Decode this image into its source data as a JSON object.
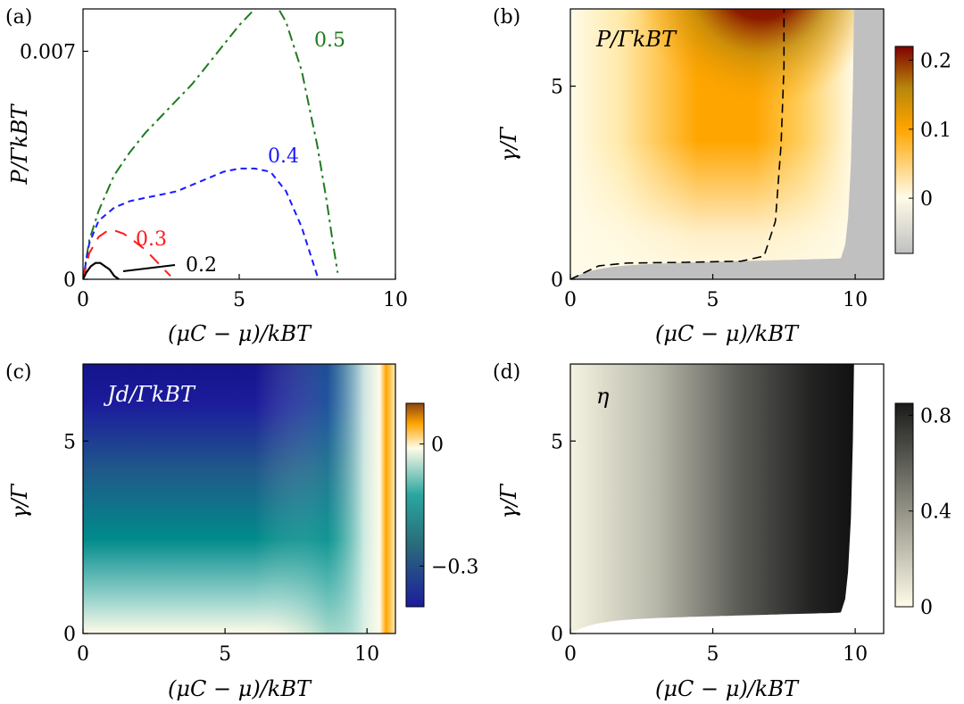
{
  "chart_data": [
    {
      "panel": "(a)",
      "type": "line",
      "title": "",
      "xlabel": "(μC − μ)/kBT",
      "ylabel": "P/ΓkBT",
      "xlim": [
        0,
        10
      ],
      "ylim": [
        0,
        0.0083
      ],
      "xticks": [
        "0",
        "5",
        "10"
      ],
      "yticks": [
        "0",
        "0.007"
      ],
      "series": [
        {
          "name": "0.5",
          "color": "#1f7a1f",
          "dash": "dashdot",
          "x": [
            0,
            0.2,
            0.5,
            1.0,
            1.5,
            2.0,
            2.5,
            3.0,
            3.5,
            4.0,
            4.5,
            5.0,
            5.5,
            6.0,
            6.2,
            6.5,
            7.0,
            7.5,
            7.8,
            8.0,
            8.15
          ],
          "y": [
            0,
            0.0012,
            0.0021,
            0.0032,
            0.0039,
            0.0045,
            0.005,
            0.0055,
            0.006,
            0.0066,
            0.0072,
            0.0078,
            0.0083,
            0.0085,
            0.0084,
            0.0079,
            0.0064,
            0.0041,
            0.0024,
            0.0011,
            0.0002
          ]
        },
        {
          "name": "0.4",
          "color": "#1a1aff",
          "dash": "dash",
          "x": [
            0,
            0.2,
            0.5,
            1.0,
            1.5,
            2.0,
            2.5,
            3.0,
            3.5,
            4.0,
            4.5,
            5.0,
            5.5,
            6.0,
            6.5,
            7.0,
            7.3,
            7.5
          ],
          "y": [
            0,
            0.0011,
            0.0018,
            0.0022,
            0.0024,
            0.0025,
            0.0026,
            0.0027,
            0.0029,
            0.0031,
            0.0033,
            0.0034,
            0.0034,
            0.0033,
            0.0027,
            0.0016,
            0.0007,
            0.0001
          ]
        },
        {
          "name": "0.3",
          "color": "#ff1a1a",
          "dash": "longdash",
          "x": [
            0,
            0.2,
            0.5,
            0.8,
            1.0,
            1.3,
            1.6,
            2.0,
            2.4,
            2.8
          ],
          "y": [
            0,
            0.0008,
            0.0013,
            0.0015,
            0.0015,
            0.0014,
            0.0012,
            0.0009,
            0.0005,
            0.0001
          ]
        },
        {
          "name": "0.2",
          "color": "#000000",
          "dash": "solid",
          "x": [
            0,
            0.1,
            0.25,
            0.4,
            0.55,
            0.7,
            0.85,
            1.0,
            1.15
          ],
          "y": [
            0,
            0.0002,
            0.0004,
            0.0005,
            0.0005,
            0.0004,
            0.0003,
            0.0001,
            0
          ]
        }
      ]
    },
    {
      "panel": "(b)",
      "type": "heatmap",
      "annotation": "P/ΓkBT",
      "xlabel": "(μC − μ)/kBT",
      "ylabel": "γ/Γ",
      "xlim": [
        0,
        11
      ],
      "ylim": [
        0,
        7
      ],
      "xticks": [
        "0",
        "5",
        "10"
      ],
      "yticks": [
        "0",
        "5"
      ],
      "colorbar": {
        "ticks": [
          "0.2",
          "0.1",
          "0"
        ],
        "range": [
          -0.08,
          0.22
        ],
        "colors": [
          "#c0c0c0",
          "#fffbe8",
          "#ffa500",
          "#800000"
        ]
      },
      "masked_color": "#c0c0c0",
      "dashed_line": {
        "x": [
          0,
          1,
          2,
          4,
          6,
          6.8,
          7.2,
          7.4,
          7.5,
          7.5
        ],
        "y": [
          0,
          0.35,
          0.42,
          0.44,
          0.47,
          0.6,
          1.5,
          3.5,
          5.5,
          7
        ]
      }
    },
    {
      "panel": "(c)",
      "type": "heatmap",
      "annotation": "Jd/ΓkBT",
      "xlabel": "(μC − μ)/kBT",
      "ylabel": "γ/Γ",
      "xlim": [
        0,
        11
      ],
      "ylim": [
        0,
        7
      ],
      "xticks": [
        "0",
        "5",
        "10"
      ],
      "yticks": [
        "0",
        "5"
      ],
      "colorbar": {
        "ticks": [
          "0",
          "−0.3"
        ],
        "range": [
          -0.4,
          0.1
        ],
        "colors": [
          "#1c1c9c",
          "#008b8b",
          "#fffbe8",
          "#ffa500",
          "#8b4513"
        ]
      }
    },
    {
      "panel": "(d)",
      "type": "heatmap",
      "annotation": "η",
      "xlabel": "(μC − μ)/kBT",
      "ylabel": "γ/Γ",
      "xlim": [
        0,
        11
      ],
      "ylim": [
        0,
        7
      ],
      "xticks": [
        "0",
        "5",
        "10"
      ],
      "yticks": [
        "0",
        "5"
      ],
      "colorbar": {
        "ticks": [
          "0.8",
          "0.4",
          "0"
        ],
        "range": [
          0,
          0.85
        ],
        "colors": [
          "#fffbe8",
          "#8c8c80",
          "#1a1a1a"
        ]
      }
    }
  ]
}
